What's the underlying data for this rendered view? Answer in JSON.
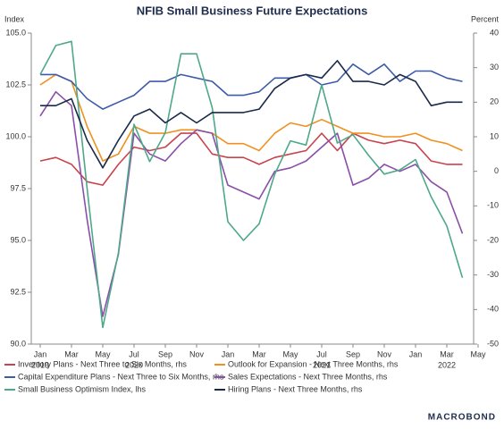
{
  "chart_data": {
    "type": "line",
    "title": "NFIB Small Business Future Expectations",
    "ylabel": "Index",
    "y2label": "Percent",
    "categories": [
      "Jan",
      null,
      "Mar",
      null,
      "May",
      null,
      "Jul",
      null,
      "Sep",
      null,
      "Nov",
      null,
      "Jan",
      null,
      "Mar",
      null,
      "May",
      null,
      "Jul",
      null,
      "Sep",
      null,
      "Nov",
      null,
      "Jan",
      null,
      "Mar",
      null,
      "May"
    ],
    "category_years": [
      "2019",
      null,
      null,
      null,
      null,
      null,
      "2020",
      null,
      null,
      null,
      null,
      null,
      null,
      null,
      null,
      null,
      null,
      null,
      "2021",
      null,
      null,
      null,
      null,
      null,
      null,
      null,
      "2022",
      null,
      null
    ],
    "ylim": [
      90,
      105
    ],
    "yticks": [
      {
        "value": 90,
        "label": "90.0"
      },
      92.5,
      {
        "value": 95,
        "label": "95.0"
      },
      97.5,
      {
        "value": 100,
        "label": "100.0"
      },
      102.5,
      {
        "value": 105,
        "label": "105.0"
      }
    ],
    "y2lim": [
      -50,
      40
    ],
    "y2ticks": [
      -50,
      -40,
      -30,
      -20,
      -10,
      0,
      10,
      20,
      30,
      40
    ],
    "legend": "bottom",
    "series": [
      {
        "name": "Inventory Plans - Next Three to Six Months, rhs",
        "color": "#c8434d",
        "axis": "y2",
        "values": [
          3,
          4,
          2,
          -3,
          -4,
          2,
          7,
          6,
          7,
          11,
          11,
          5,
          4,
          4,
          2,
          4,
          5,
          6,
          11,
          6,
          11,
          9,
          8,
          9,
          8,
          3,
          2,
          2,
          null
        ]
      },
      {
        "name": "Outlook for Expansion - Next Three Months, rhs",
        "color": "#f0901e",
        "axis": "y2",
        "values": [
          25,
          28,
          26,
          13,
          3,
          5,
          13,
          11,
          11,
          12,
          12,
          11,
          8,
          8,
          6,
          11,
          14,
          13,
          15,
          13,
          11,
          11,
          10,
          10,
          11,
          9,
          8,
          6,
          null
        ]
      },
      {
        "name": "Capital Expenditure Plans - Next Three to Six Months, rhs",
        "color": "#3e5ba9",
        "axis": "y2",
        "values": [
          28,
          28,
          26,
          21,
          18,
          20,
          22,
          26,
          26,
          28,
          27,
          26,
          22,
          22,
          23,
          27,
          27,
          28,
          25,
          26,
          31,
          28,
          31,
          26,
          29,
          29,
          27,
          26,
          null
        ]
      },
      {
        "name": "Sales Expectations - Next Three Months, rhs",
        "color": "#8a4fa8",
        "axis": "y2",
        "values": [
          16,
          23,
          19,
          -14,
          -42,
          -24,
          11,
          5,
          3,
          8,
          12,
          11,
          -4,
          -6,
          -8,
          0,
          1,
          3,
          7,
          11,
          -4,
          -2,
          2,
          0,
          2,
          -3,
          -6,
          -18,
          null
        ]
      },
      {
        "name": "Small Business Optimism Index, lhs",
        "color": "#4fa88a",
        "axis": "y",
        "values": [
          103.0,
          104.4,
          104.6,
          97.5,
          90.8,
          94.4,
          100.6,
          98.8,
          100.2,
          104.0,
          104.0,
          101.4,
          95.9,
          95.0,
          95.8,
          98.2,
          99.8,
          99.6,
          102.5,
          99.7,
          100.1,
          99.1,
          98.2,
          98.4,
          98.9,
          97.1,
          95.7,
          93.2,
          null
        ]
      },
      {
        "name": "Hiring Plans - Next Three Months, rhs",
        "color": "#1a2a4a",
        "axis": "y2",
        "values": [
          19,
          19,
          21,
          9,
          1,
          9,
          16,
          18,
          14,
          17,
          14,
          17,
          17,
          17,
          18,
          24,
          27,
          28,
          27,
          32,
          26,
          26,
          25,
          28,
          26,
          19,
          20,
          20,
          null
        ]
      }
    ],
    "source_logo": "MACROBOND"
  }
}
